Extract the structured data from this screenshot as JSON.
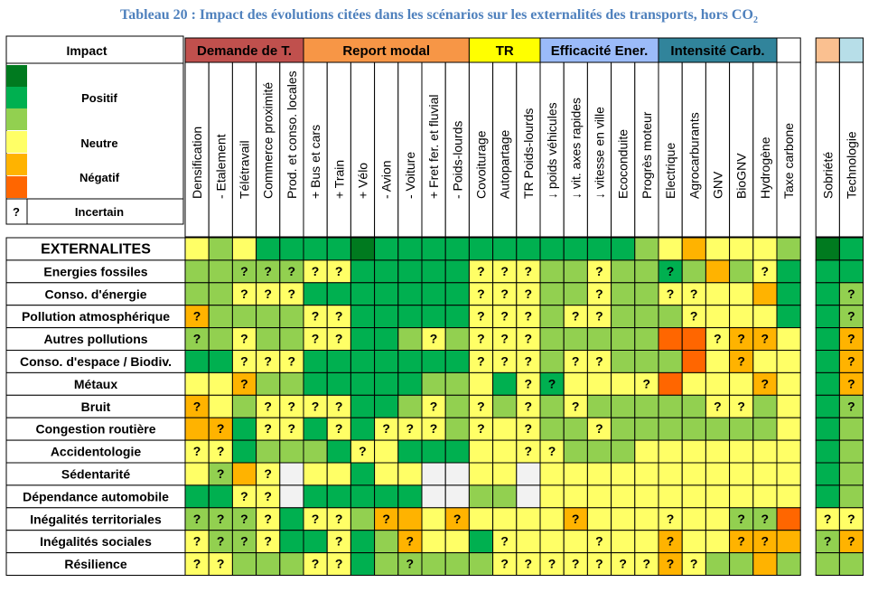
{
  "title_main": "Tableau 20 : Impact des évolutions citées dans les scénarios sur les externalités des transports, hors CO",
  "title_sub": "2",
  "colors": {
    "dark_green": "#007a1f",
    "green": "#00b050",
    "light_green": "#92d050",
    "yellow": "#ffff66",
    "orange": "#ffb300",
    "red": "#ff6600",
    "grey": "#f2f2f2",
    "white": "#ffffff"
  },
  "legend": {
    "header": "Impact",
    "positive": "Positif",
    "neutral": "Neutre",
    "negative": "Négatif",
    "uncertain_mark": "?",
    "uncertain": "Incertain"
  },
  "groups": [
    {
      "label": "Demande de T.",
      "color": "#c0504d",
      "span": 5
    },
    {
      "label": "Report modal",
      "color": "#f79646",
      "span": 7
    },
    {
      "label": "TR",
      "color": "#ffff00",
      "span": 3
    },
    {
      "label": "Efficacité Ener.",
      "color": "#9bbbf9",
      "span": 5
    },
    {
      "label": "Intensité Carb.",
      "color": "#31849b",
      "span": 5
    },
    {
      "label": "",
      "color": "#ffffff",
      "span": 1
    },
    {
      "label": "",
      "color": "#fac090",
      "span": 1
    },
    {
      "label": "",
      "color": "#b7dee8",
      "span": 1
    }
  ],
  "chart_data": {
    "type": "table",
    "categories": [
      "Densification",
      "- Etalement",
      "Télétravail",
      "Commerce proximité",
      "Prod. et conso. locales",
      "+ Bus et cars",
      "+ Train",
      "+ Vélo",
      "- Avion",
      "- Voiture",
      "+ Fret fer. et fluvial",
      "- Poids-lourds",
      "Covoiturage",
      "Autopartage",
      "TR Poids-lourds",
      "↓ poids véhicules",
      "↓ vit. axes rapides",
      "↓ vitesse en ville",
      "Ecoconduite",
      "Progrès moteur",
      "Electrique",
      "Agrocarburants",
      "GNV",
      "BioGNV",
      "Hydrogène",
      "Taxe carbone",
      "Sobriété",
      "Technologie"
    ],
    "rows": [
      {
        "label": "EXTERNALITES",
        "cells": [
          "y",
          "lg",
          "y",
          "g",
          "g",
          "g",
          "g",
          "dg",
          "g",
          "g",
          "g",
          "g",
          "g",
          "g",
          "g",
          "g",
          "g",
          "g",
          "g",
          "lg",
          "y",
          "o",
          "y",
          "y",
          "y",
          "lg",
          "dg",
          "g"
        ],
        "uncertain": []
      },
      {
        "label": "Energies fossiles",
        "cells": [
          "lg",
          "lg",
          "lg",
          "lg",
          "lg",
          "y",
          "y",
          "g",
          "g",
          "g",
          "g",
          "g",
          "y",
          "y",
          "y",
          "lg",
          "lg",
          "y",
          "lg",
          "lg",
          "g",
          "lg",
          "o",
          "lg",
          "y",
          "g",
          "g",
          "g"
        ],
        "uncertain": [
          2,
          3,
          4,
          5,
          6,
          12,
          13,
          14,
          17,
          20,
          24
        ]
      },
      {
        "label": "Conso. d'énergie",
        "cells": [
          "lg",
          "lg",
          "y",
          "y",
          "y",
          "g",
          "g",
          "g",
          "g",
          "g",
          "g",
          "g",
          "y",
          "y",
          "y",
          "lg",
          "lg",
          "y",
          "lg",
          "lg",
          "y",
          "y",
          "y",
          "y",
          "o",
          "g",
          "g",
          "lg"
        ],
        "uncertain": [
          2,
          3,
          4,
          12,
          13,
          14,
          17,
          20,
          21,
          27
        ]
      },
      {
        "label": "Pollution atmosphérique",
        "cells": [
          "o",
          "lg",
          "lg",
          "lg",
          "lg",
          "y",
          "y",
          "g",
          "g",
          "g",
          "g",
          "g",
          "y",
          "y",
          "y",
          "lg",
          "y",
          "y",
          "lg",
          "lg",
          "lg",
          "y",
          "y",
          "y",
          "y",
          "g",
          "g",
          "lg"
        ],
        "uncertain": [
          0,
          5,
          6,
          12,
          13,
          14,
          16,
          17,
          21,
          27
        ]
      },
      {
        "label": "Autres pollutions",
        "cells": [
          "lg",
          "lg",
          "y",
          "lg",
          "lg",
          "y",
          "y",
          "g",
          "g",
          "lg",
          "y",
          "lg",
          "y",
          "y",
          "y",
          "lg",
          "lg",
          "lg",
          "lg",
          "lg",
          "r",
          "r",
          "y",
          "o",
          "o",
          "y",
          "g",
          "o"
        ],
        "uncertain": [
          0,
          2,
          5,
          6,
          10,
          12,
          13,
          14,
          22,
          23,
          24,
          27
        ]
      },
      {
        "label": "Conso. d'espace / Biodiv.",
        "cells": [
          "g",
          "g",
          "y",
          "y",
          "y",
          "g",
          "g",
          "g",
          "g",
          "g",
          "g",
          "g",
          "y",
          "y",
          "y",
          "lg",
          "y",
          "y",
          "lg",
          "lg",
          "lg",
          "r",
          "y",
          "o",
          "y",
          "y",
          "g",
          "o"
        ],
        "uncertain": [
          2,
          3,
          4,
          12,
          13,
          14,
          16,
          17,
          23,
          27
        ]
      },
      {
        "label": "Métaux",
        "cells": [
          "y",
          "y",
          "o",
          "lg",
          "lg",
          "g",
          "g",
          "g",
          "g",
          "g",
          "lg",
          "lg",
          "y",
          "g",
          "y",
          "g",
          "y",
          "y",
          "y",
          "y",
          "r",
          "y",
          "y",
          "y",
          "o",
          "y",
          "g",
          "o"
        ],
        "uncertain": [
          2,
          14,
          15,
          19,
          24,
          27
        ]
      },
      {
        "label": "Bruit",
        "cells": [
          "o",
          "y",
          "lg",
          "y",
          "y",
          "y",
          "y",
          "g",
          "g",
          "lg",
          "y",
          "lg",
          "y",
          "lg",
          "y",
          "lg",
          "y",
          "lg",
          "lg",
          "lg",
          "lg",
          "lg",
          "y",
          "y",
          "lg",
          "y",
          "g",
          "lg"
        ],
        "uncertain": [
          0,
          3,
          4,
          5,
          6,
          10,
          12,
          14,
          16,
          22,
          23,
          27
        ]
      },
      {
        "label": "Congestion routière",
        "cells": [
          "o",
          "o",
          "g",
          "y",
          "y",
          "g",
          "y",
          "g",
          "y",
          "y",
          "y",
          "lg",
          "y",
          "y",
          "y",
          "lg",
          "lg",
          "y",
          "lg",
          "lg",
          "lg",
          "lg",
          "lg",
          "lg",
          "lg",
          "y",
          "g",
          "lg"
        ],
        "uncertain": [
          1,
          3,
          4,
          6,
          8,
          9,
          10,
          12,
          14,
          17
        ]
      },
      {
        "label": "Accidentologie",
        "cells": [
          "y",
          "y",
          "g",
          "lg",
          "lg",
          "lg",
          "g",
          "y",
          "y",
          "g",
          "g",
          "g",
          "y",
          "y",
          "y",
          "y",
          "lg",
          "lg",
          "lg",
          "y",
          "y",
          "y",
          "y",
          "y",
          "y",
          "y",
          "g",
          "lg"
        ],
        "uncertain": [
          0,
          1,
          7,
          14,
          15
        ]
      },
      {
        "label": "Sédentarité",
        "cells": [
          "y",
          "lg",
          "o",
          "y",
          "gr",
          "y",
          "y",
          "g",
          "y",
          "y",
          "gr",
          "gr",
          "y",
          "y",
          "gr",
          "y",
          "y",
          "y",
          "y",
          "y",
          "y",
          "y",
          "y",
          "y",
          "y",
          "y",
          "g",
          "lg"
        ],
        "uncertain": [
          1,
          3
        ]
      },
      {
        "label": "Dépendance automobile",
        "cells": [
          "g",
          "g",
          "y",
          "y",
          "gr",
          "g",
          "g",
          "g",
          "g",
          "g",
          "gr",
          "gr",
          "lg",
          "lg",
          "gr",
          "y",
          "y",
          "y",
          "y",
          "y",
          "y",
          "y",
          "y",
          "y",
          "y",
          "y",
          "g",
          "lg"
        ],
        "uncertain": [
          2,
          3
        ]
      },
      {
        "label": "Inégalités territoriales",
        "cells": [
          "lg",
          "lg",
          "lg",
          "y",
          "g",
          "y",
          "y",
          "lg",
          "o",
          "o",
          "y",
          "o",
          "y",
          "y",
          "y",
          "y",
          "o",
          "y",
          "y",
          "y",
          "y",
          "y",
          "y",
          "lg",
          "lg",
          "r",
          "y",
          "y"
        ],
        "uncertain": [
          0,
          1,
          2,
          3,
          5,
          6,
          8,
          11,
          16,
          20,
          23,
          24,
          26,
          27
        ]
      },
      {
        "label": "Inégalités sociales",
        "cells": [
          "y",
          "lg",
          "lg",
          "y",
          "g",
          "g",
          "y",
          "g",
          "lg",
          "o",
          "y",
          "y",
          "g",
          "y",
          "y",
          "y",
          "y",
          "y",
          "y",
          "y",
          "o",
          "y",
          "y",
          "o",
          "o",
          "o",
          "lg",
          "o"
        ],
        "uncertain": [
          0,
          1,
          2,
          3,
          6,
          9,
          13,
          17,
          20,
          23,
          24,
          26,
          27
        ]
      },
      {
        "label": "Résilience",
        "cells": [
          "y",
          "y",
          "lg",
          "lg",
          "lg",
          "y",
          "y",
          "g",
          "lg",
          "lg",
          "lg",
          "lg",
          "lg",
          "y",
          "y",
          "y",
          "y",
          "y",
          "y",
          "y",
          "o",
          "y",
          "lg",
          "lg",
          "o",
          "lg",
          "lg",
          "lg"
        ],
        "uncertain": [
          0,
          1,
          5,
          6,
          9,
          13,
          14,
          15,
          16,
          17,
          18,
          19,
          20,
          21
        ]
      }
    ]
  }
}
